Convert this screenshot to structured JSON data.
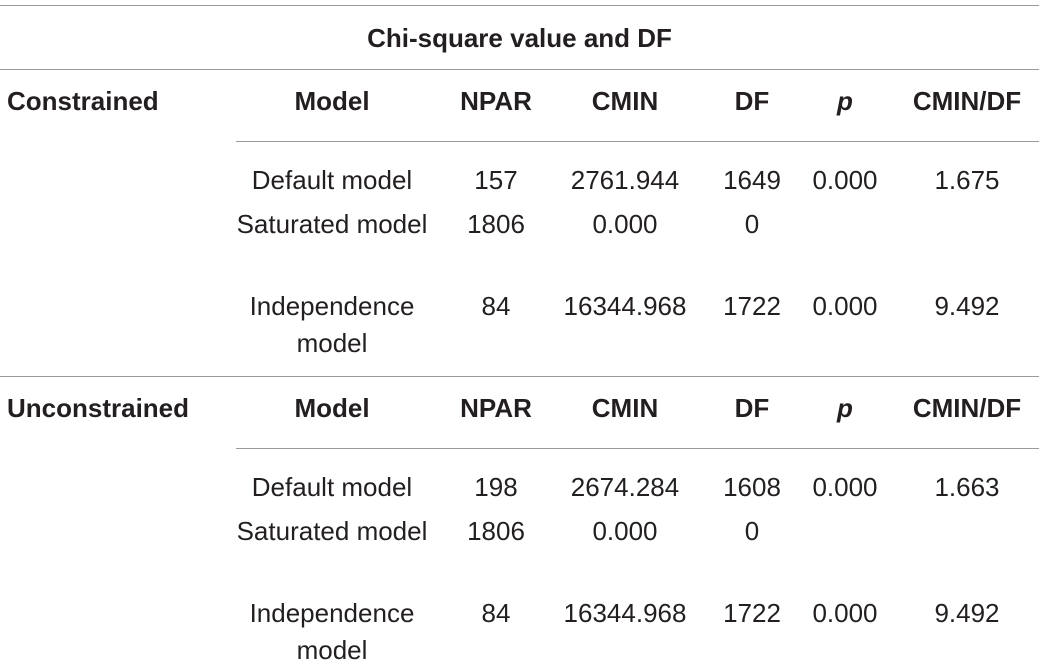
{
  "table_title": "Chi-square value and DF",
  "sections": [
    {
      "label": "Constrained",
      "columns": [
        "Model",
        "NPAR",
        "CMIN",
        "DF",
        "p",
        "CMIN/DF"
      ],
      "rows": [
        {
          "model": "Default model",
          "npar": "157",
          "cmin": "2761.944",
          "df": "1649",
          "p": "0.000",
          "cmin_df": "1.675"
        },
        {
          "model": "Saturated model",
          "npar": "1806",
          "cmin": "0.000",
          "df": "0",
          "p": "",
          "cmin_df": ""
        },
        {
          "model": "Independence model",
          "npar": "84",
          "cmin": "16344.968",
          "df": "1722",
          "p": "0.000",
          "cmin_df": "9.492"
        }
      ]
    },
    {
      "label": "Unconstrained",
      "columns": [
        "Model",
        "NPAR",
        "CMIN",
        "DF",
        "p",
        "CMIN/DF"
      ],
      "rows": [
        {
          "model": "Default model",
          "npar": "198",
          "cmin": "2674.284",
          "df": "1608",
          "p": "0.000",
          "cmin_df": "1.663"
        },
        {
          "model": "Saturated model",
          "npar": "1806",
          "cmin": "0.000",
          "df": "0",
          "p": "",
          "cmin_df": ""
        },
        {
          "model": "Independence model",
          "npar": "84",
          "cmin": "16344.968",
          "df": "1722",
          "p": "0.000",
          "cmin_df": "9.492"
        }
      ]
    }
  ]
}
